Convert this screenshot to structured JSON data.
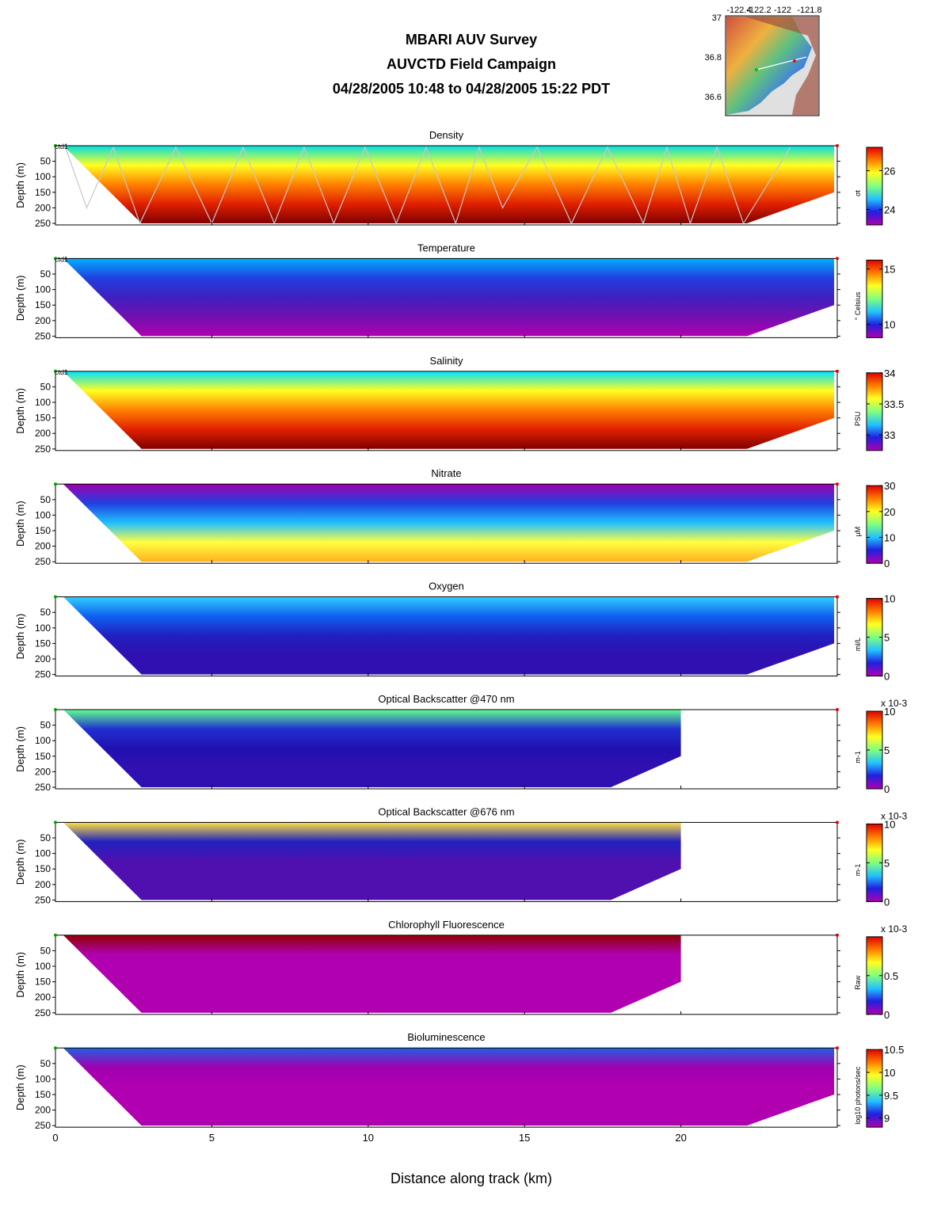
{
  "header": {
    "title_line1": "MBARI AUV Survey",
    "title_line2": "AUVCTD Field Campaign",
    "title_line3": "04/28/2005 10:48  to 04/28/2005 15:22 PDT"
  },
  "map": {
    "x_ticks": [
      "-122.4",
      "-122.2",
      "-122",
      "-121.8"
    ],
    "y_ticks": [
      "37",
      "36.8",
      "36.6"
    ]
  },
  "xaxis": {
    "label": "Distance along track (km)",
    "ticks": [
      0,
      5,
      10,
      15,
      20
    ],
    "range": [
      0,
      25
    ]
  },
  "chart_data": [
    {
      "type": "heatmap",
      "title": "Density",
      "ylabel": "Depth (m)",
      "yticks": [
        50,
        100,
        150,
        200,
        250
      ],
      "cbar_label": "σt",
      "cbar_ticks": [
        "24",
        "26"
      ],
      "cbar_range": [
        23.2,
        27.2
      ],
      "marker": "ctd1",
      "colors": [
        "#00e0e0",
        "#ffff20",
        "#ff8000",
        "#e02000",
        "#800000"
      ],
      "track_km": 25,
      "end_km": 24.9
    },
    {
      "type": "heatmap",
      "title": "Temperature",
      "ylabel": "Depth (m)",
      "yticks": [
        50,
        100,
        150,
        200,
        250
      ],
      "cbar_label": "° Celsius",
      "cbar_ticks": [
        "10",
        "15"
      ],
      "cbar_range": [
        8.8,
        15.8
      ],
      "marker": "ctd1",
      "colors": [
        "#00b0ff",
        "#2040e0",
        "#4020c0",
        "#7010b0",
        "#b000b0"
      ],
      "track_km": 25,
      "end_km": 24.9
    },
    {
      "type": "heatmap",
      "title": "Salinity",
      "ylabel": "Depth (m)",
      "yticks": [
        50,
        100,
        150,
        200,
        250
      ],
      "cbar_label": "PSU",
      "cbar_ticks": [
        "33",
        "33.5",
        "34"
      ],
      "cbar_range": [
        32.75,
        34
      ],
      "marker": "ctd1",
      "colors": [
        "#00e0ff",
        "#ffff20",
        "#ff8000",
        "#e02000",
        "#800000"
      ],
      "track_km": 25,
      "end_km": 24.9
    },
    {
      "type": "heatmap",
      "title": "Nitrate",
      "ylabel": "Depth (m)",
      "yticks": [
        50,
        100,
        150,
        200,
        250
      ],
      "cbar_label": "µM",
      "cbar_ticks": [
        "0",
        "10",
        "20",
        "30"
      ],
      "cbar_range": [
        0,
        30
      ],
      "marker": "",
      "colors": [
        "#a000b0",
        "#2040e0",
        "#20c0ff",
        "#ffff40",
        "#ffb020"
      ],
      "track_km": 25,
      "end_km": 24.9
    },
    {
      "type": "heatmap",
      "title": "Oxygen",
      "ylabel": "Depth (m)",
      "yticks": [
        50,
        100,
        150,
        200,
        250
      ],
      "cbar_label": "ml/L",
      "cbar_ticks": [
        "0",
        "5",
        "10"
      ],
      "cbar_range": [
        0,
        10
      ],
      "marker": "",
      "colors": [
        "#30d0ff",
        "#1060f0",
        "#2020c0",
        "#3010b0",
        "#3010b0"
      ],
      "track_km": 25,
      "end_km": 24.9
    },
    {
      "type": "heatmap",
      "title": "Optical Backscatter @470 nm",
      "ylabel": "Depth (m)",
      "yticks": [
        50,
        100,
        150,
        200,
        250
      ],
      "cbar_label": "m-1",
      "cbar_ticks": [
        "0",
        "5",
        "10"
      ],
      "cbar_range": [
        0,
        10
      ],
      "cbar_exp": "x 10-3",
      "marker": "",
      "colors": [
        "#60ff90",
        "#2030d0",
        "#2010b0",
        "#3010b0",
        "#3010b0"
      ],
      "track_km": 25,
      "end_km": 20
    },
    {
      "type": "heatmap",
      "title": "Optical Backscatter @676 nm",
      "ylabel": "Depth (m)",
      "yticks": [
        50,
        100,
        150,
        200,
        250
      ],
      "cbar_label": "m-1",
      "cbar_ticks": [
        "0",
        "5",
        "10"
      ],
      "cbar_range": [
        0,
        10
      ],
      "cbar_exp": "x 10-3",
      "marker": "",
      "colors": [
        "#ffe040",
        "#2020c0",
        "#5010b0",
        "#5010b0",
        "#5010b0"
      ],
      "track_km": 25,
      "end_km": 20
    },
    {
      "type": "heatmap",
      "title": "Chlorophyll Fluorescence",
      "ylabel": "Depth (m)",
      "yticks": [
        50,
        100,
        150,
        200,
        250
      ],
      "cbar_label": "Raw",
      "cbar_ticks": [
        "0",
        "0.5"
      ],
      "cbar_range": [
        0,
        1
      ],
      "cbar_exp": "x 10-3",
      "marker": "",
      "colors": [
        "#900000",
        "#b000b0",
        "#b000b0",
        "#b000b0",
        "#b000b0"
      ],
      "track_km": 25,
      "end_km": 20
    },
    {
      "type": "heatmap",
      "title": "Bioluminescence",
      "ylabel": "Depth (m)",
      "yticks": [
        50,
        100,
        150,
        200,
        250
      ],
      "cbar_label": "log10 photons/sec",
      "cbar_ticks": [
        "9",
        "9.5",
        "10",
        "10.5"
      ],
      "cbar_range": [
        8.8,
        10.5
      ],
      "marker": "",
      "colors": [
        "#2060e0",
        "#a000b0",
        "#b000b0",
        "#b000b0",
        "#b000b0"
      ],
      "track_km": 25,
      "end_km": 24.9
    }
  ]
}
